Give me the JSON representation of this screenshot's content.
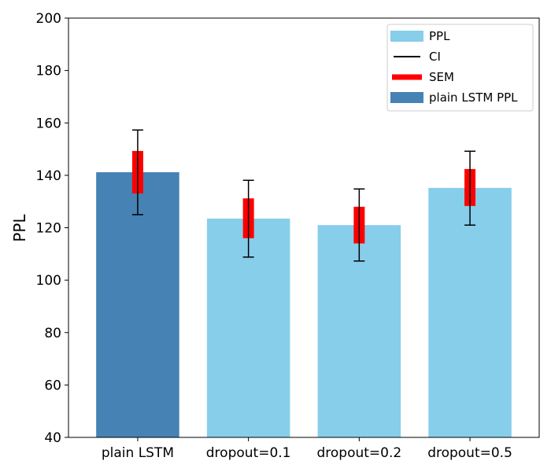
{
  "chart_data": {
    "type": "bar",
    "title": "",
    "xlabel": "",
    "ylabel": "PPL",
    "ylim": [
      40,
      200
    ],
    "yticks": [
      40,
      60,
      80,
      100,
      120,
      140,
      160,
      180,
      200
    ],
    "ytick_labels": [
      "40",
      "60",
      "80",
      "100",
      "120",
      "140",
      "160",
      "180",
      "200"
    ],
    "categories": [
      "plain LSTM",
      "dropout=0.1",
      "dropout=0.2",
      "dropout=0.5"
    ],
    "values": [
      141.2,
      123.5,
      121.0,
      135.2
    ],
    "ci": [
      [
        125.0,
        157.3
      ],
      [
        108.8,
        138.1
      ],
      [
        107.3,
        134.8
      ],
      [
        121.0,
        149.2
      ]
    ],
    "sem": [
      [
        133.1,
        149.3
      ],
      [
        116.0,
        131.2
      ],
      [
        114.0,
        128.0
      ],
      [
        128.3,
        142.4
      ]
    ],
    "bar_colors": [
      "#4682b4",
      "#87ceeb",
      "#87ceeb",
      "#87ceeb"
    ],
    "ci_color": "#000000",
    "sem_color": "#ff0000",
    "grid": false,
    "legend": {
      "placement": "top-right",
      "entries": [
        {
          "label": "PPL",
          "kind": "patch",
          "color": "#87ceeb"
        },
        {
          "label": "CI",
          "kind": "line",
          "color": "#000000"
        },
        {
          "label": "SEM",
          "kind": "thick-line",
          "color": "#ff0000"
        },
        {
          "label": "plain LSTM PPL",
          "kind": "patch",
          "color": "#4682b4"
        }
      ]
    }
  }
}
